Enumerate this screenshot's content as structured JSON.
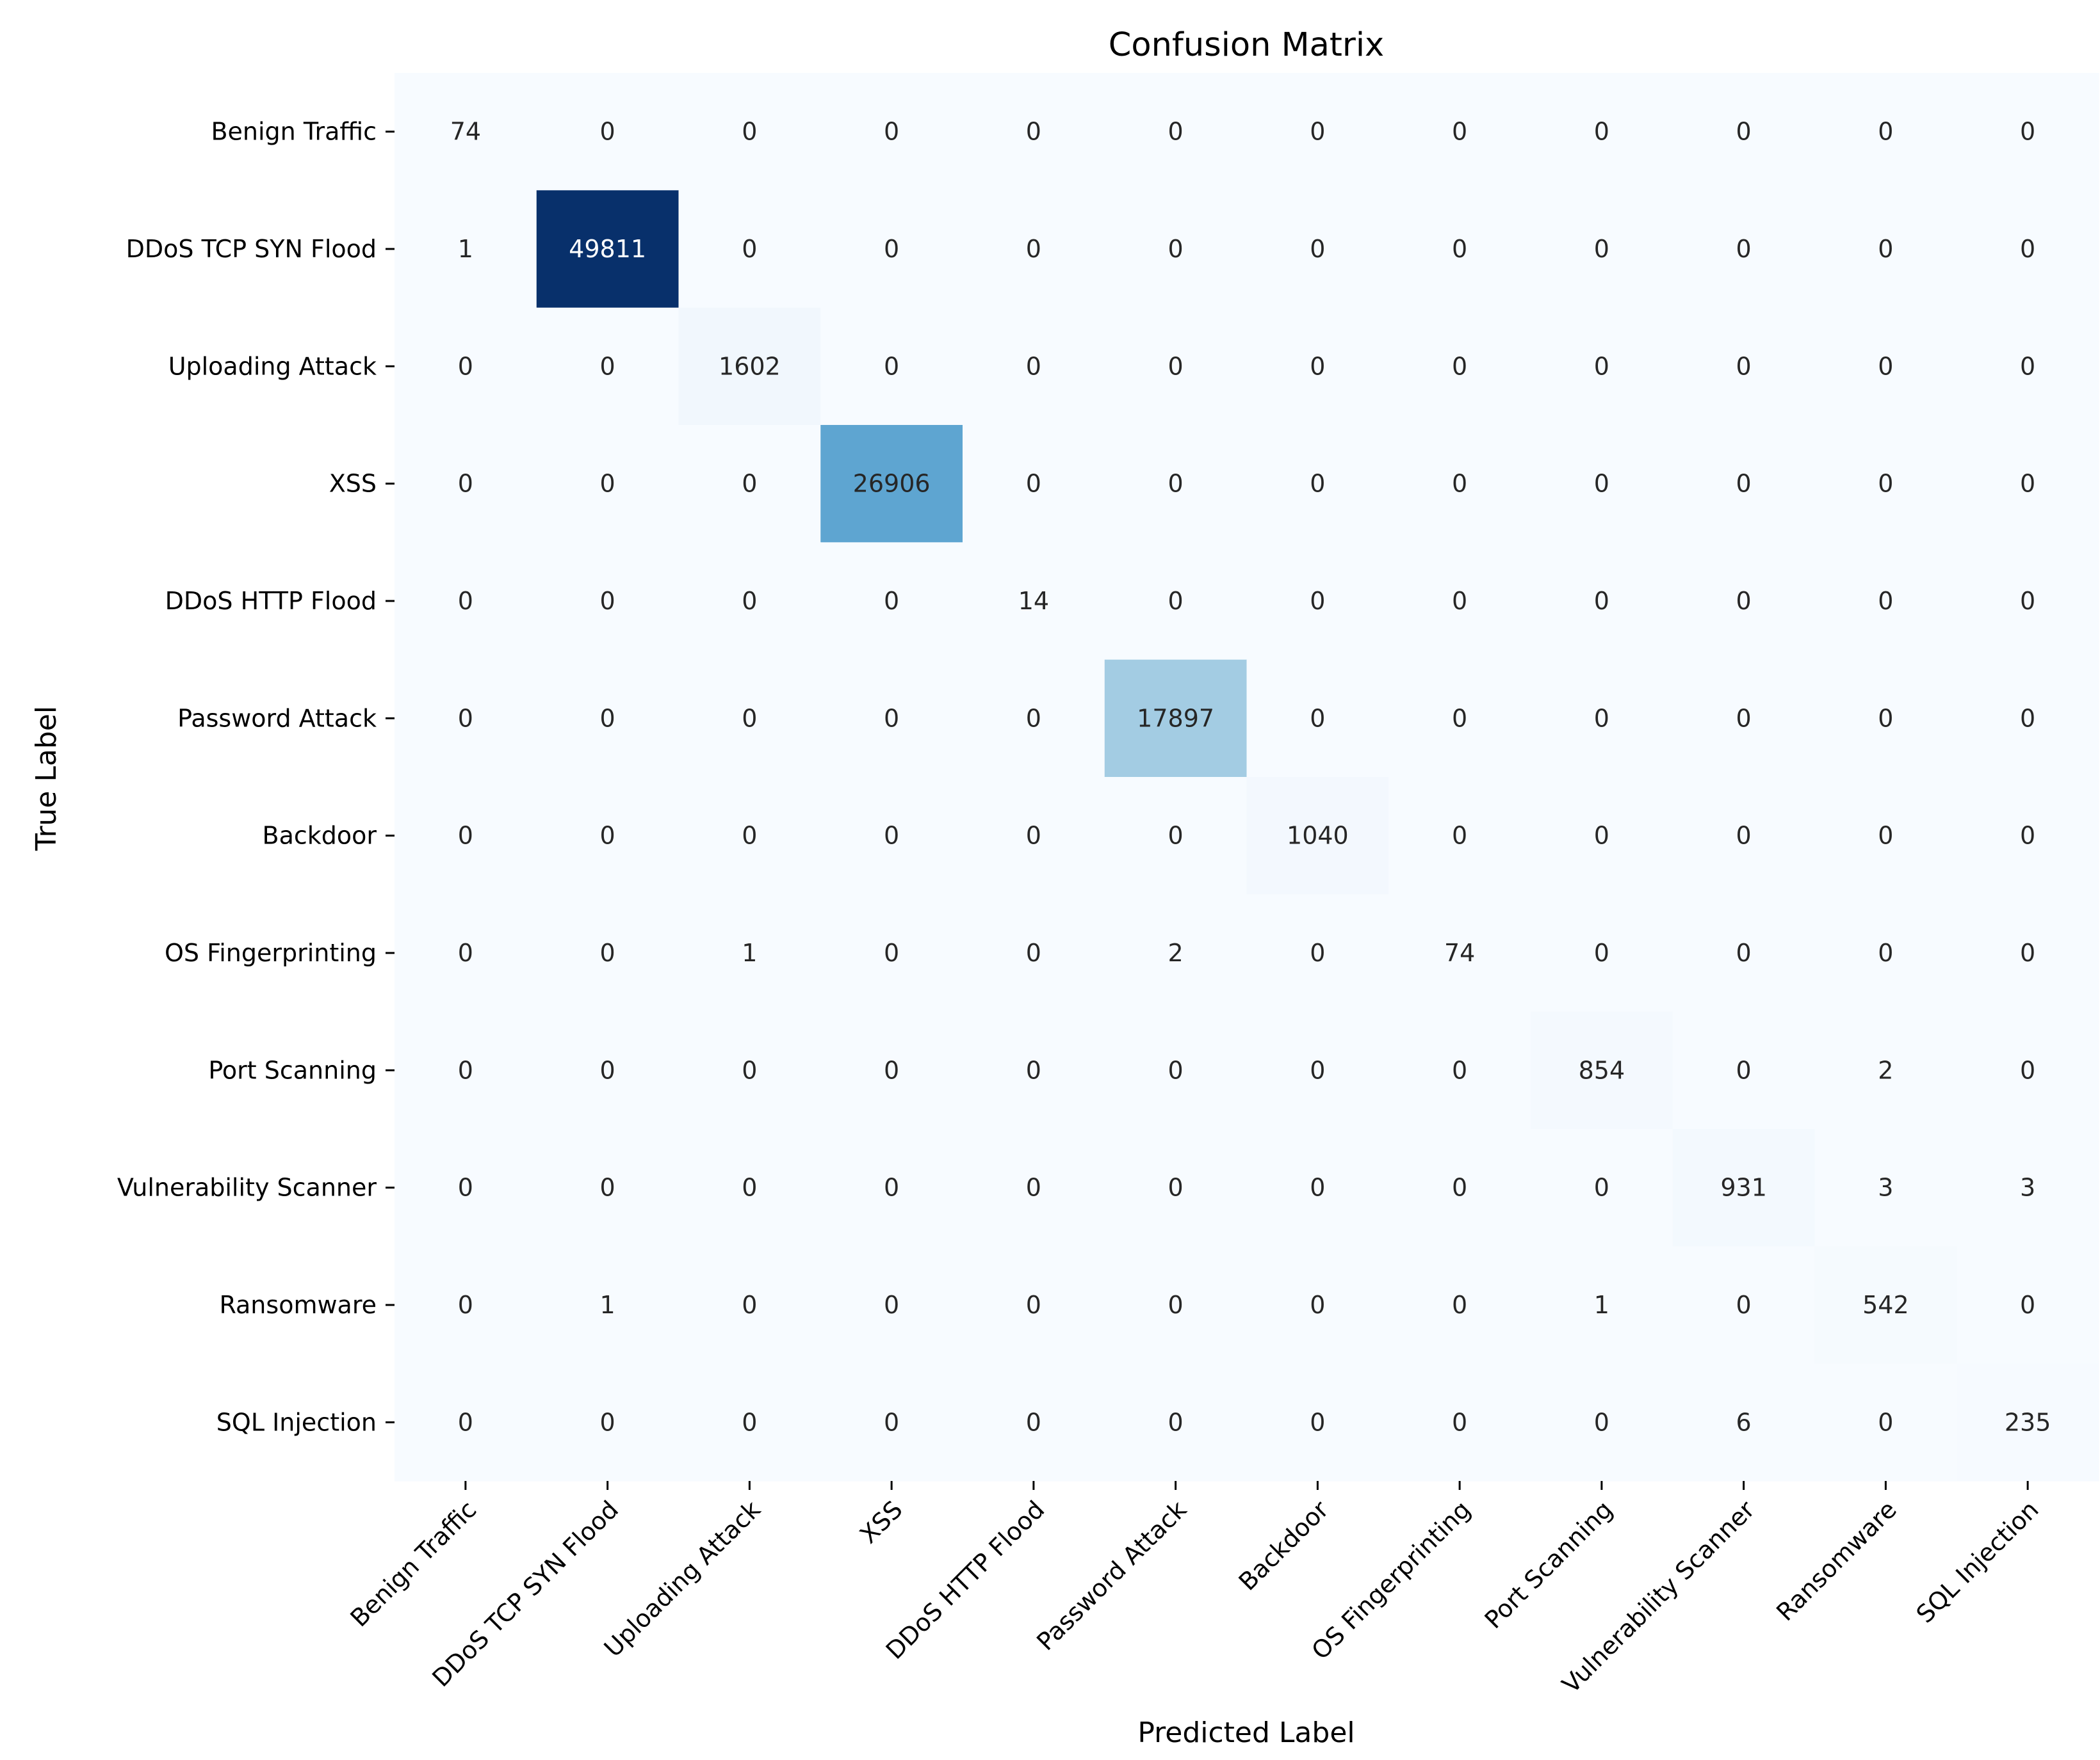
{
  "chart_data": {
    "type": "heatmap",
    "title": "Confusion Matrix",
    "xlabel": "Predicted Label",
    "ylabel": "True Label",
    "colormap": "Blues",
    "colors": {
      "low": "#f7fbff",
      "high": "#08306b",
      "text_dark": "#262626",
      "text_light": "#ffffff"
    },
    "x_categories": [
      "Benign Traffic",
      "DDoS TCP SYN Flood",
      "Uploading Attack",
      "XSS",
      "DDoS HTTP Flood",
      "Password Attack",
      "Backdoor",
      "OS Fingerprinting",
      "Port Scanning",
      "Vulnerability Scanner",
      "Ransomware",
      "SQL Injection"
    ],
    "y_categories": [
      "Benign Traffic",
      "DDoS TCP SYN Flood",
      "Uploading Attack",
      "XSS",
      "DDoS HTTP Flood",
      "Password Attack",
      "Backdoor",
      "OS Fingerprinting",
      "Port Scanning",
      "Vulnerability Scanner",
      "Ransomware",
      "SQL Injection"
    ],
    "matrix": [
      [
        74,
        0,
        0,
        0,
        0,
        0,
        0,
        0,
        0,
        0,
        0,
        0
      ],
      [
        1,
        49811,
        0,
        0,
        0,
        0,
        0,
        0,
        0,
        0,
        0,
        0
      ],
      [
        0,
        0,
        1602,
        0,
        0,
        0,
        0,
        0,
        0,
        0,
        0,
        0
      ],
      [
        0,
        0,
        0,
        26906,
        0,
        0,
        0,
        0,
        0,
        0,
        0,
        0
      ],
      [
        0,
        0,
        0,
        0,
        14,
        0,
        0,
        0,
        0,
        0,
        0,
        0
      ],
      [
        0,
        0,
        0,
        0,
        0,
        17897,
        0,
        0,
        0,
        0,
        0,
        0
      ],
      [
        0,
        0,
        0,
        0,
        0,
        0,
        1040,
        0,
        0,
        0,
        0,
        0
      ],
      [
        0,
        0,
        1,
        0,
        0,
        2,
        0,
        74,
        0,
        0,
        0,
        0
      ],
      [
        0,
        0,
        0,
        0,
        0,
        0,
        0,
        0,
        854,
        0,
        2,
        0
      ],
      [
        0,
        0,
        0,
        0,
        0,
        0,
        0,
        0,
        0,
        931,
        3,
        3
      ],
      [
        0,
        1,
        0,
        0,
        0,
        0,
        0,
        0,
        1,
        0,
        542,
        0
      ],
      [
        0,
        0,
        0,
        0,
        0,
        0,
        0,
        0,
        0,
        6,
        0,
        235
      ]
    ],
    "vmin": 0,
    "vmax": 49811,
    "colorbar": false
  }
}
